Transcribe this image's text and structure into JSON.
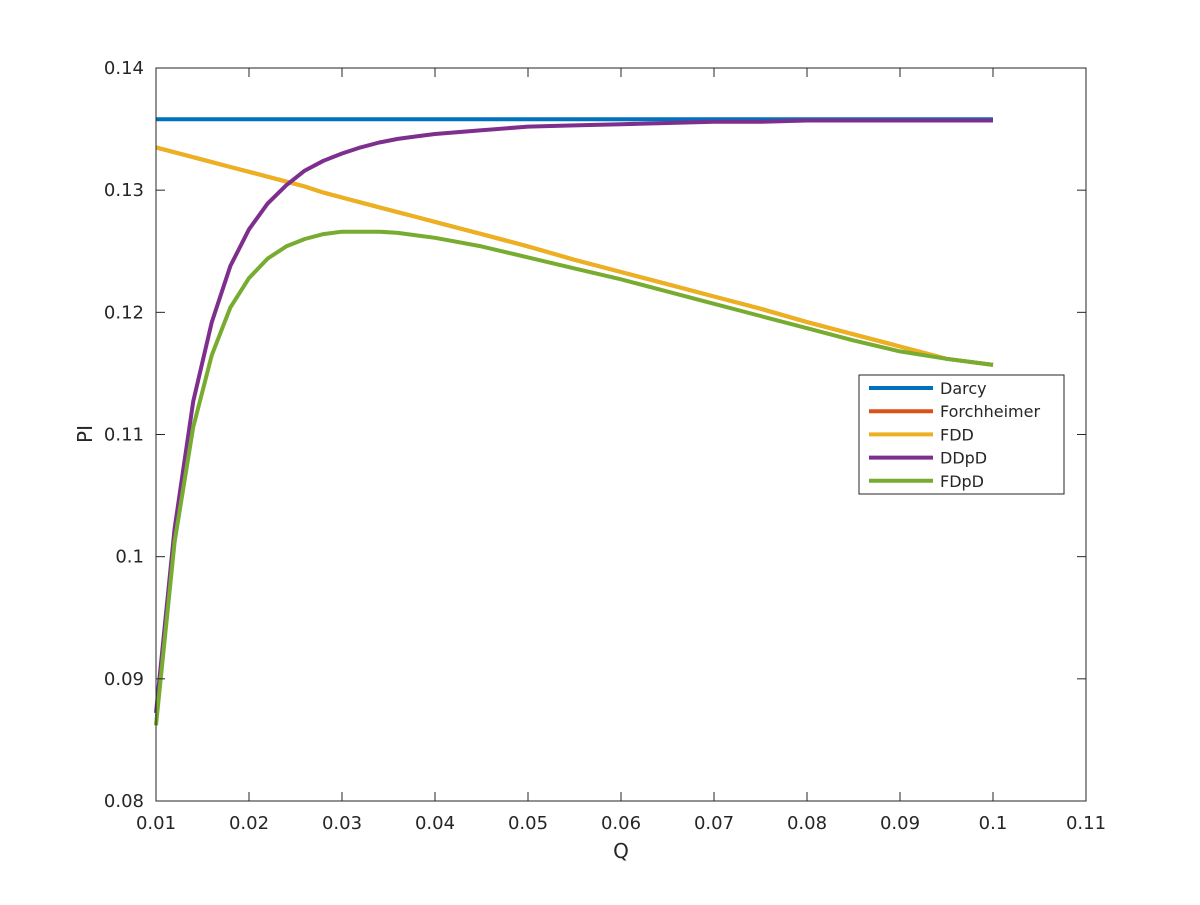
{
  "chart_data": {
    "type": "line",
    "title": "",
    "xlabel": "Q",
    "ylabel": "PI",
    "xlim": [
      0.01,
      0.11
    ],
    "ylim": [
      0.08,
      0.14
    ],
    "xticks": [
      "0.01",
      "0.02",
      "0.03",
      "0.04",
      "0.05",
      "0.06",
      "0.07",
      "0.08",
      "0.09",
      "0.1",
      "0.11"
    ],
    "yticks": [
      "0.08",
      "0.09",
      "0.1",
      "0.11",
      "0.12",
      "0.13",
      "0.14"
    ],
    "grid": false,
    "legend_position": "right",
    "x": [
      0.01,
      0.012,
      0.014,
      0.016,
      0.018,
      0.02,
      0.022,
      0.024,
      0.026,
      0.028,
      0.03,
      0.032,
      0.034,
      0.036,
      0.038,
      0.04,
      0.045,
      0.05,
      0.055,
      0.06,
      0.065,
      0.07,
      0.075,
      0.08,
      0.085,
      0.09,
      0.095,
      0.1
    ],
    "series": [
      {
        "name": "Darcy",
        "color": "#0072BD",
        "values": [
          0.1358,
          0.1358,
          0.1358,
          0.1358,
          0.1358,
          0.1358,
          0.1358,
          0.1358,
          0.1358,
          0.1358,
          0.1358,
          0.1358,
          0.1358,
          0.1358,
          0.1358,
          0.1358,
          0.1358,
          0.1358,
          0.1358,
          0.1358,
          0.1358,
          0.1358,
          0.1358,
          0.1358,
          0.1358,
          0.1358,
          0.1358,
          0.1358
        ]
      },
      {
        "name": "Forchheimer",
        "color": "#D95319",
        "values": [
          0.1335,
          0.1331,
          0.1327,
          0.1323,
          0.1319,
          0.1315,
          0.1311,
          0.1307,
          0.1303,
          0.1298,
          0.1294,
          0.129,
          0.1286,
          0.1282,
          0.1278,
          0.1274,
          0.1264,
          0.1254,
          0.1243,
          0.1233,
          0.1223,
          0.1213,
          0.1203,
          0.1192,
          0.1182,
          0.1172,
          0.1162,
          0.1157
        ]
      },
      {
        "name": "FDD",
        "color": "#EDB120",
        "values": [
          0.1335,
          0.1331,
          0.1327,
          0.1323,
          0.1319,
          0.1315,
          0.1311,
          0.1307,
          0.1303,
          0.1298,
          0.1294,
          0.129,
          0.1286,
          0.1282,
          0.1278,
          0.1274,
          0.1264,
          0.1254,
          0.1243,
          0.1233,
          0.1223,
          0.1213,
          0.1203,
          0.1192,
          0.1182,
          0.1172,
          0.1162,
          0.1157
        ]
      },
      {
        "name": "DDpD",
        "color": "#7E2F8E",
        "values": [
          0.0872,
          0.1023,
          0.1127,
          0.1192,
          0.1238,
          0.1268,
          0.1289,
          0.1304,
          0.1316,
          0.1324,
          0.133,
          0.1335,
          0.1339,
          0.1342,
          0.1344,
          0.1346,
          0.1349,
          0.1352,
          0.1353,
          0.1354,
          0.1355,
          0.1356,
          0.1356,
          0.1357,
          0.1357,
          0.1357,
          0.1357,
          0.1357
        ]
      },
      {
        "name": "FDpD",
        "color": "#77AC30",
        "values": [
          0.0862,
          0.1012,
          0.1106,
          0.1165,
          0.1204,
          0.1228,
          0.1244,
          0.1254,
          0.126,
          0.1264,
          0.1266,
          0.1266,
          0.1266,
          0.1265,
          0.1263,
          0.1261,
          0.1254,
          0.1245,
          0.1236,
          0.1227,
          0.1217,
          0.1207,
          0.1197,
          0.1187,
          0.1177,
          0.1168,
          0.1162,
          0.1157
        ]
      }
    ]
  }
}
